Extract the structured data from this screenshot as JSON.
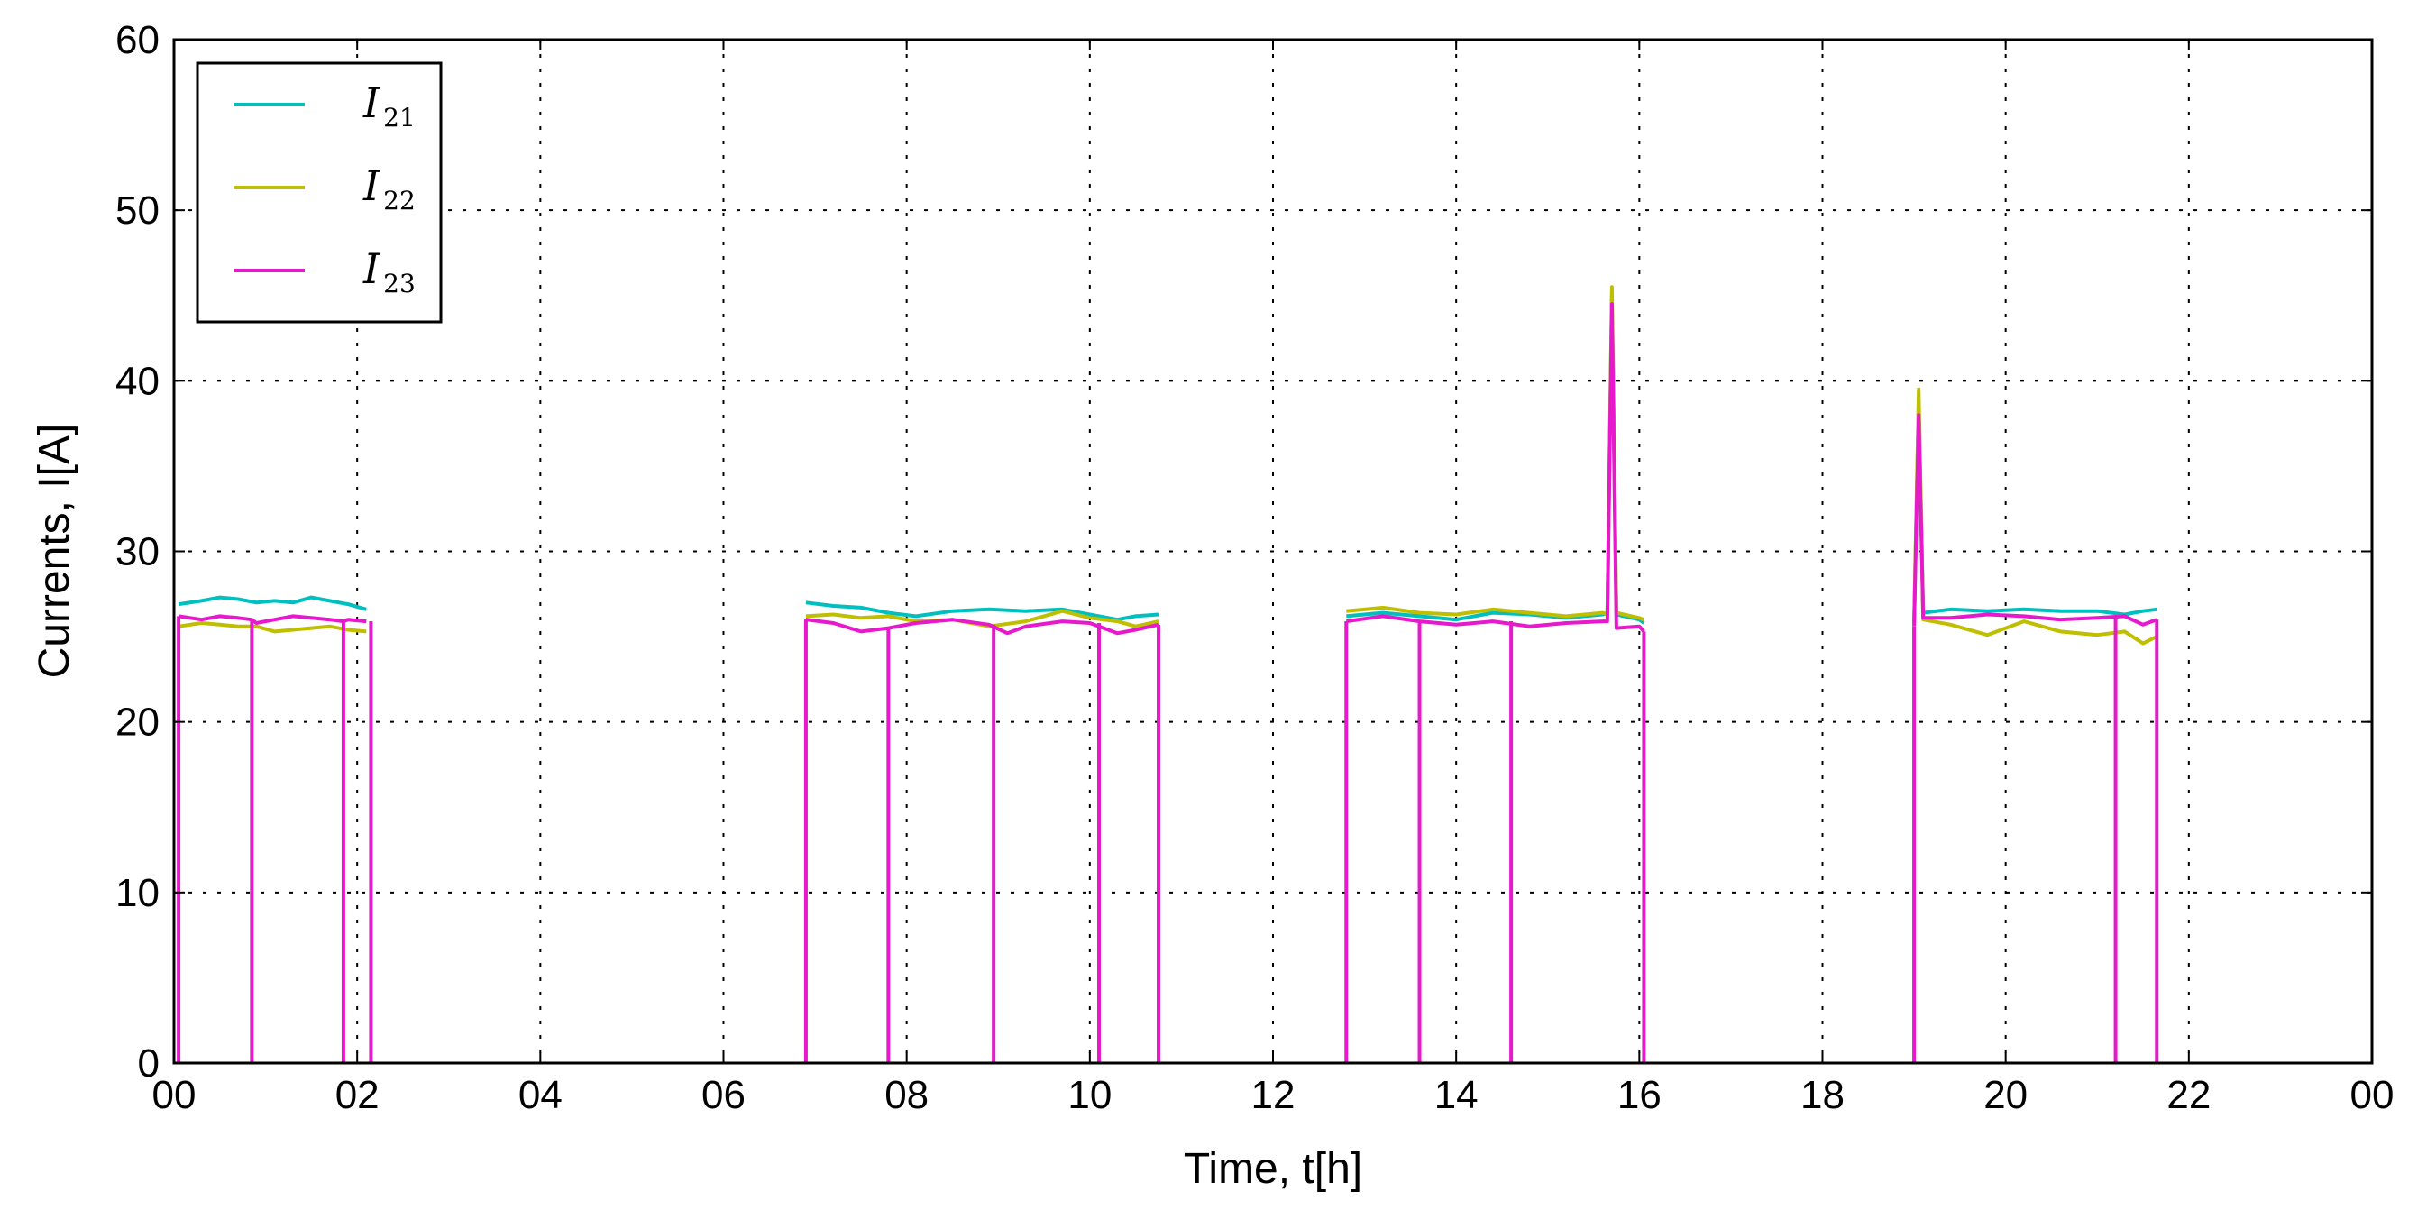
{
  "chart_data": {
    "type": "line",
    "title": "",
    "xlabel": "Time, t[h]",
    "ylabel": "Currents, I[A]",
    "xlim": [
      0,
      24
    ],
    "ylim": [
      0,
      60
    ],
    "x_tick_labels": [
      "00",
      "02",
      "04",
      "06",
      "08",
      "10",
      "12",
      "14",
      "16",
      "18",
      "20",
      "22",
      "00"
    ],
    "y_tick_labels": [
      "0",
      "10",
      "20",
      "30",
      "40",
      "50",
      "60"
    ],
    "grid": true,
    "legend_position": "top-left",
    "series": [
      {
        "name": "I21",
        "label_main": "I",
        "label_sub": "21",
        "color": "#00BFBF",
        "segments": [
          {
            "x": [
              0.05,
              0.3,
              0.5,
              0.7,
              0.9,
              1.1,
              1.3,
              1.5,
              1.7,
              1.9,
              2.1
            ],
            "y": [
              26.9,
              27.1,
              27.3,
              27.2,
              27.0,
              27.1,
              27.0,
              27.3,
              27.1,
              26.9,
              26.6
            ]
          },
          {
            "x": [
              6.9,
              7.2,
              7.5,
              7.8,
              8.1,
              8.5,
              8.9,
              9.3,
              9.7,
              10.0,
              10.3,
              10.5,
              10.75
            ],
            "y": [
              27.0,
              26.8,
              26.7,
              26.4,
              26.2,
              26.5,
              26.6,
              26.5,
              26.6,
              26.3,
              26.0,
              26.2,
              26.3
            ]
          },
          {
            "x": [
              12.8,
              13.2,
              13.6,
              14.0,
              14.4,
              14.8,
              15.2,
              15.6,
              15.65,
              15.7,
              15.75,
              16.0,
              16.05
            ],
            "y": [
              26.2,
              26.4,
              26.2,
              26.0,
              26.4,
              26.3,
              26.1,
              26.3,
              26.4,
              45.0,
              26.3,
              26.0,
              25.8
            ]
          },
          {
            "x": [
              19.0,
              19.05,
              19.1,
              19.4,
              19.8,
              20.2,
              20.6,
              21.0,
              21.3,
              21.5,
              21.65
            ],
            "y": [
              25.8,
              38.8,
              26.4,
              26.6,
              26.5,
              26.6,
              26.5,
              26.5,
              26.3,
              26.5,
              26.6
            ]
          }
        ]
      },
      {
        "name": "I22",
        "label_main": "I",
        "label_sub": "22",
        "color": "#BFBF00",
        "segments": [
          {
            "x": [
              0.05,
              0.3,
              0.5,
              0.7,
              0.9,
              1.1,
              1.3,
              1.5,
              1.7,
              1.9,
              2.1
            ],
            "y": [
              25.6,
              25.8,
              25.7,
              25.6,
              25.6,
              25.3,
              25.4,
              25.5,
              25.6,
              25.4,
              25.3
            ]
          },
          {
            "x": [
              6.9,
              7.2,
              7.5,
              7.8,
              8.1,
              8.5,
              8.9,
              9.3,
              9.7,
              10.0,
              10.3,
              10.5,
              10.75
            ],
            "y": [
              26.2,
              26.3,
              26.1,
              26.2,
              25.9,
              26.0,
              25.6,
              25.9,
              26.5,
              26.1,
              25.9,
              25.6,
              25.9
            ]
          },
          {
            "x": [
              12.8,
              13.2,
              13.6,
              14.0,
              14.4,
              14.8,
              15.2,
              15.6,
              15.65,
              15.7,
              15.75,
              16.0,
              16.05
            ],
            "y": [
              26.5,
              26.7,
              26.4,
              26.3,
              26.6,
              26.4,
              26.2,
              26.4,
              26.3,
              45.5,
              26.4,
              26.1,
              26.0
            ]
          },
          {
            "x": [
              19.0,
              19.05,
              19.1,
              19.4,
              19.8,
              20.2,
              20.6,
              21.0,
              21.3,
              21.5,
              21.65
            ],
            "y": [
              25.8,
              39.5,
              26.0,
              25.7,
              25.1,
              25.9,
              25.3,
              25.1,
              25.3,
              24.6,
              25.0
            ]
          }
        ]
      },
      {
        "name": "I23",
        "label_main": "I",
        "label_sub": "23",
        "color": "#E619CC",
        "segments": [
          {
            "x": [
              0.05,
              0.3,
              0.5,
              0.7,
              0.85,
              0.9,
              1.1,
              1.3,
              1.5,
              1.7,
              1.85,
              1.9,
              2.1
            ],
            "y": [
              26.2,
              26.0,
              26.2,
              26.1,
              26.0,
              25.8,
              26.0,
              26.2,
              26.1,
              26.0,
              25.9,
              26.0,
              25.9
            ]
          },
          {
            "x": [
              6.9,
              7.2,
              7.5,
              7.8,
              8.1,
              8.5,
              8.9,
              9.1,
              9.3,
              9.7,
              10.0,
              10.3,
              10.5,
              10.75
            ],
            "y": [
              26.0,
              25.8,
              25.3,
              25.5,
              25.8,
              26.0,
              25.7,
              25.2,
              25.6,
              25.9,
              25.8,
              25.2,
              25.4,
              25.7
            ]
          },
          {
            "x": [
              12.8,
              13.2,
              13.6,
              14.0,
              14.4,
              14.8,
              15.2,
              15.6,
              15.65,
              15.7,
              15.75,
              16.0,
              16.05
            ],
            "y": [
              25.9,
              26.2,
              25.9,
              25.7,
              25.9,
              25.6,
              25.8,
              25.9,
              25.9,
              44.5,
              25.5,
              25.6,
              25.3
            ]
          },
          {
            "x": [
              19.0,
              19.05,
              19.1,
              19.4,
              19.8,
              20.2,
              20.6,
              21.0,
              21.3,
              21.5,
              21.65
            ],
            "y": [
              25.6,
              38.0,
              26.1,
              26.1,
              26.3,
              26.2,
              26.0,
              26.1,
              26.2,
              25.7,
              26.0
            ]
          }
        ],
        "drops_to_zero_at": [
          0.05,
          0.85,
          1.85,
          2.15,
          6.9,
          7.8,
          8.95,
          10.1,
          10.75,
          12.8,
          13.6,
          14.6,
          16.05,
          19.0,
          21.2,
          21.65
        ]
      }
    ]
  }
}
